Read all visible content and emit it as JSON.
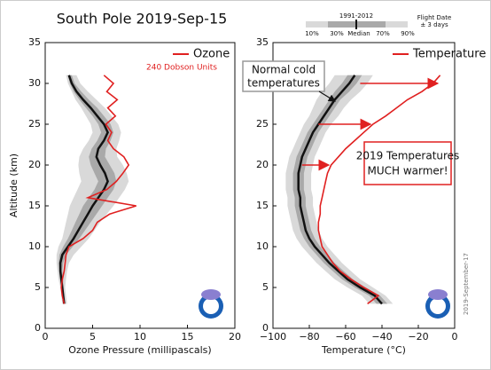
{
  "chart_data": [
    {
      "type": "line",
      "title": "South Pole 2019-Sep-15",
      "x_label": "Ozone Pressure (millipascals)",
      "y_label": "Altitude (km)",
      "xlim": [
        0,
        20
      ],
      "xticks": [
        0,
        5,
        10,
        15,
        20
      ],
      "ylim": [
        0,
        35
      ],
      "yticks": [
        0,
        5,
        10,
        15,
        20,
        25,
        30,
        35
      ],
      "annotation": "240 Dobson Units",
      "y": [
        3,
        4,
        5,
        6,
        7,
        8,
        9,
        10,
        11,
        12,
        13,
        14,
        15,
        16,
        17,
        18,
        19,
        20,
        21,
        22,
        23,
        24,
        25,
        26,
        27,
        28,
        29,
        30,
        31
      ],
      "band_colors": [
        "#d9d9d9",
        "#a9a9a9"
      ],
      "median_color": "#111111",
      "percentiles": [
        [
          1.8,
          1.7,
          1.6,
          1.4,
          1.3,
          1.2,
          1.2,
          1.4,
          1.8,
          2.0,
          2.2,
          2.4,
          2.6,
          3.0,
          3.4,
          3.8,
          3.6,
          3.5,
          3.6,
          4.0,
          4.6,
          5.0,
          4.8,
          4.3,
          3.8,
          3.2,
          2.8,
          2.4,
          2.2
        ],
        [
          1.9,
          1.8,
          1.7,
          1.6,
          1.5,
          1.4,
          1.5,
          1.9,
          2.4,
          2.8,
          3.2,
          3.6,
          4.0,
          4.6,
          5.2,
          5.6,
          5.2,
          4.8,
          4.6,
          4.9,
          5.5,
          5.9,
          5.6,
          5.0,
          4.3,
          3.6,
          3.0,
          2.6,
          2.4
        ],
        [
          2.0,
          1.9,
          1.8,
          1.7,
          1.6,
          1.6,
          1.8,
          2.4,
          3.0,
          3.5,
          4.0,
          4.5,
          5.0,
          5.6,
          6.2,
          6.6,
          6.3,
          5.8,
          5.4,
          5.6,
          6.2,
          6.6,
          6.2,
          5.5,
          4.8,
          4.0,
          3.3,
          2.8,
          2.5
        ],
        [
          2.1,
          2.0,
          1.9,
          1.9,
          1.8,
          1.9,
          2.2,
          2.9,
          3.6,
          4.2,
          4.8,
          5.4,
          6.0,
          6.6,
          7.2,
          7.5,
          7.3,
          6.8,
          6.3,
          6.4,
          6.9,
          7.2,
          6.9,
          6.2,
          5.5,
          4.6,
          3.8,
          3.1,
          2.8
        ],
        [
          2.3,
          2.2,
          2.1,
          2.2,
          2.3,
          2.5,
          3.0,
          3.8,
          4.6,
          5.2,
          5.8,
          6.5,
          7.2,
          7.8,
          8.4,
          8.8,
          8.6,
          8.2,
          7.6,
          7.5,
          7.8,
          8.0,
          7.7,
          7.0,
          6.3,
          5.4,
          4.5,
          3.7,
          3.3
        ]
      ],
      "series": [
        {
          "name": "Ozone",
          "color": "#e02020",
          "values": [
            2.0,
            1.8,
            1.7,
            1.8,
            2.0,
            2.1,
            2.2,
            2.5,
            4.0,
            5.0,
            5.5,
            6.8,
            9.6,
            4.5,
            6.5,
            7.5,
            8.2,
            8.8,
            8.3,
            7.2,
            6.6,
            7.0,
            6.4,
            7.4,
            6.6,
            7.6,
            6.5,
            7.2,
            6.2
          ]
        }
      ]
    },
    {
      "type": "line",
      "x_label": "Temperature (°C)",
      "xlim": [
        -100,
        0
      ],
      "xticks": [
        {
          "value": -100,
          "label": "−100"
        },
        {
          "value": -80,
          "label": "−80"
        },
        {
          "value": -60,
          "label": "−60"
        },
        {
          "value": -40,
          "label": "−40"
        },
        {
          "value": -20,
          "label": "−20"
        },
        0
      ],
      "ylim": [
        0,
        35
      ],
      "yticks": [
        0,
        5,
        10,
        15,
        20,
        25,
        30,
        35
      ],
      "y": [
        3,
        4,
        5,
        6,
        7,
        8,
        9,
        10,
        11,
        12,
        13,
        14,
        15,
        16,
        17,
        18,
        19,
        20,
        21,
        22,
        23,
        24,
        25,
        26,
        27,
        28,
        29,
        30,
        31
      ],
      "band_colors": [
        "#d9d9d9",
        "#a9a9a9"
      ],
      "median_color": "#111111",
      "percentiles": [
        [
          -47,
          -51,
          -59,
          -66,
          -71,
          -76,
          -80,
          -84,
          -87,
          -89,
          -90,
          -91,
          -92,
          -92,
          -93,
          -93,
          -93,
          -92,
          -91,
          -89,
          -87,
          -85,
          -83,
          -80,
          -78,
          -76,
          -73,
          -69,
          -66
        ],
        [
          -43,
          -47,
          -55,
          -62,
          -67,
          -72,
          -76,
          -80,
          -83,
          -85,
          -86,
          -87,
          -88,
          -88,
          -89,
          -89,
          -89,
          -88,
          -87,
          -85,
          -83,
          -81,
          -78,
          -75,
          -72,
          -69,
          -66,
          -62,
          -59
        ],
        [
          -40,
          -44,
          -52,
          -59,
          -64,
          -69,
          -73,
          -77,
          -80,
          -82,
          -83,
          -84,
          -85,
          -85,
          -86,
          -86,
          -86,
          -85,
          -84,
          -82,
          -80,
          -78,
          -75,
          -72,
          -69,
          -66,
          -62,
          -58,
          -55
        ],
        [
          -37,
          -41,
          -49,
          -56,
          -61,
          -66,
          -70,
          -74,
          -77,
          -79,
          -80,
          -81,
          -82,
          -82,
          -83,
          -83,
          -83,
          -82,
          -81,
          -79,
          -77,
          -75,
          -72,
          -69,
          -66,
          -63,
          -58,
          -54,
          -51
        ],
        [
          -34,
          -38,
          -45,
          -52,
          -57,
          -62,
          -66,
          -70,
          -73,
          -75,
          -76,
          -77,
          -78,
          -78,
          -79,
          -79,
          -79,
          -78,
          -77,
          -75,
          -73,
          -71,
          -68,
          -64,
          -61,
          -57,
          -52,
          -48,
          -45
        ]
      ],
      "series": [
        {
          "name": "Temperature",
          "color": "#e02020",
          "values": [
            -48,
            -42,
            -50,
            -57,
            -63,
            -67,
            -70,
            -73,
            -74,
            -75,
            -75,
            -74,
            -74,
            -73,
            -72,
            -71,
            -70,
            -68,
            -64,
            -60,
            -55,
            -50,
            -45,
            -38,
            -32,
            -26,
            -18,
            -12,
            -8
          ]
        }
      ],
      "annotations": [
        {
          "lines": [
            "Normal cold",
            "temperatures"
          ]
        },
        {
          "lines": [
            "2019 Temperatures",
            "MUCH warmer!"
          ]
        }
      ],
      "band_legend": {
        "title": "1991-2012",
        "labels": [
          "10%",
          "30%",
          "Median",
          "70%",
          "90%"
        ],
        "note": [
          "Flight Date",
          "± 3 days"
        ]
      },
      "side_note": "2019-September-17"
    }
  ]
}
